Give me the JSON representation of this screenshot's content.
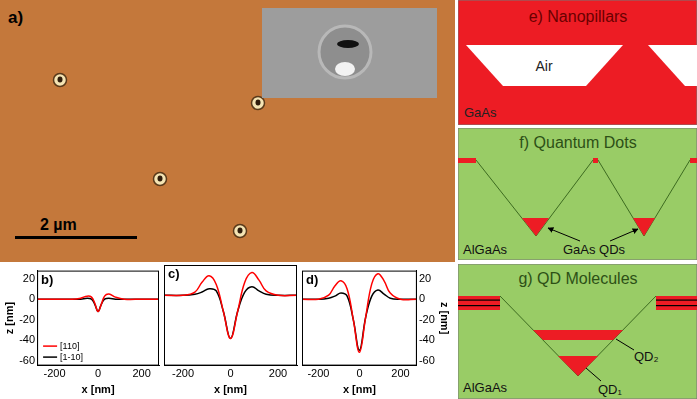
{
  "panels": {
    "a": {
      "label": "a)",
      "scale_bar": "2 µm"
    },
    "e": {
      "title": "e) Nanopillars",
      "gap": "Air",
      "substrate": "GaAs"
    },
    "f": {
      "title": "f) Quantum Dots",
      "matrix": "AlGaAs",
      "dots": "GaAs QDs"
    },
    "g": {
      "title": "g) QD Molecules",
      "matrix": "AlGaAs",
      "lower_dot": "QD₁",
      "upper_dot": "QD₂"
    }
  },
  "chart_data": [
    {
      "type": "line",
      "title": "b)",
      "xlabel": "x [nm]",
      "ylabel": "z [nm]",
      "x": [
        -280,
        -200,
        -120,
        -80,
        -50,
        -30,
        -15,
        0,
        15,
        30,
        50,
        80,
        120,
        200,
        280
      ],
      "series": [
        {
          "name": "[110]",
          "color": "#ff0000",
          "values": [
            0,
            0,
            0,
            1,
            3,
            2,
            -4,
            -12,
            -5,
            3,
            5,
            2,
            0,
            0,
            0
          ]
        },
        {
          "name": "[1-10]",
          "color": "#000000",
          "values": [
            0,
            0,
            0,
            0,
            1,
            0,
            -5,
            -12,
            -5,
            0,
            1,
            0,
            0,
            0,
            0
          ]
        }
      ],
      "xlim": [
        -280,
        280
      ],
      "xticks": [
        -200,
        0,
        200
      ],
      "ylim": [
        -65,
        28
      ],
      "yticks": [
        -60,
        -40,
        -20,
        0,
        20
      ],
      "grid": false,
      "legend": "lower left"
    },
    {
      "type": "line",
      "title": "c)",
      "xlabel": "x [nm]",
      "x": [
        -280,
        -200,
        -150,
        -120,
        -90,
        -60,
        -30,
        0,
        30,
        60,
        90,
        120,
        150,
        200,
        280
      ],
      "series": [
        {
          "color": "#ff0000",
          "values": [
            0,
            0,
            3,
            12,
            18,
            10,
            -15,
            -40,
            -15,
            12,
            21,
            14,
            4,
            0,
            0
          ]
        },
        {
          "color": "#000000",
          "values": [
            0,
            0,
            1,
            3,
            6,
            4,
            -15,
            -40,
            -15,
            3,
            8,
            4,
            1,
            0,
            0
          ]
        }
      ],
      "xlim": [
        -280,
        280
      ],
      "xticks": [
        -200,
        0,
        200
      ],
      "ylim": [
        -65,
        28
      ],
      "yticks": [
        -60,
        -40,
        -20,
        0,
        20
      ],
      "grid": false,
      "tick_labels": "x"
    },
    {
      "type": "line",
      "title": "d)",
      "xlabel": "x [nm]",
      "y2label": "z [nm]",
      "x": [
        -280,
        -200,
        -150,
        -120,
        -90,
        -60,
        -30,
        0,
        30,
        60,
        90,
        120,
        150,
        200,
        280
      ],
      "series": [
        {
          "color": "#ff0000",
          "axis": "y2",
          "values": [
            0,
            0,
            4,
            13,
            18,
            10,
            -20,
            -52,
            -18,
            15,
            25,
            18,
            6,
            0,
            0
          ]
        },
        {
          "color": "#000000",
          "axis": "y2",
          "values": [
            0,
            0,
            1,
            3,
            6,
            3,
            -20,
            -50,
            -18,
            3,
            9,
            5,
            1,
            0,
            0
          ]
        }
      ],
      "xlim": [
        -280,
        280
      ],
      "xticks": [
        -200,
        0,
        200
      ],
      "y2lim": [
        -65,
        28
      ],
      "y2ticks": [
        -60,
        -40,
        -20,
        0,
        20
      ],
      "grid": false
    }
  ]
}
